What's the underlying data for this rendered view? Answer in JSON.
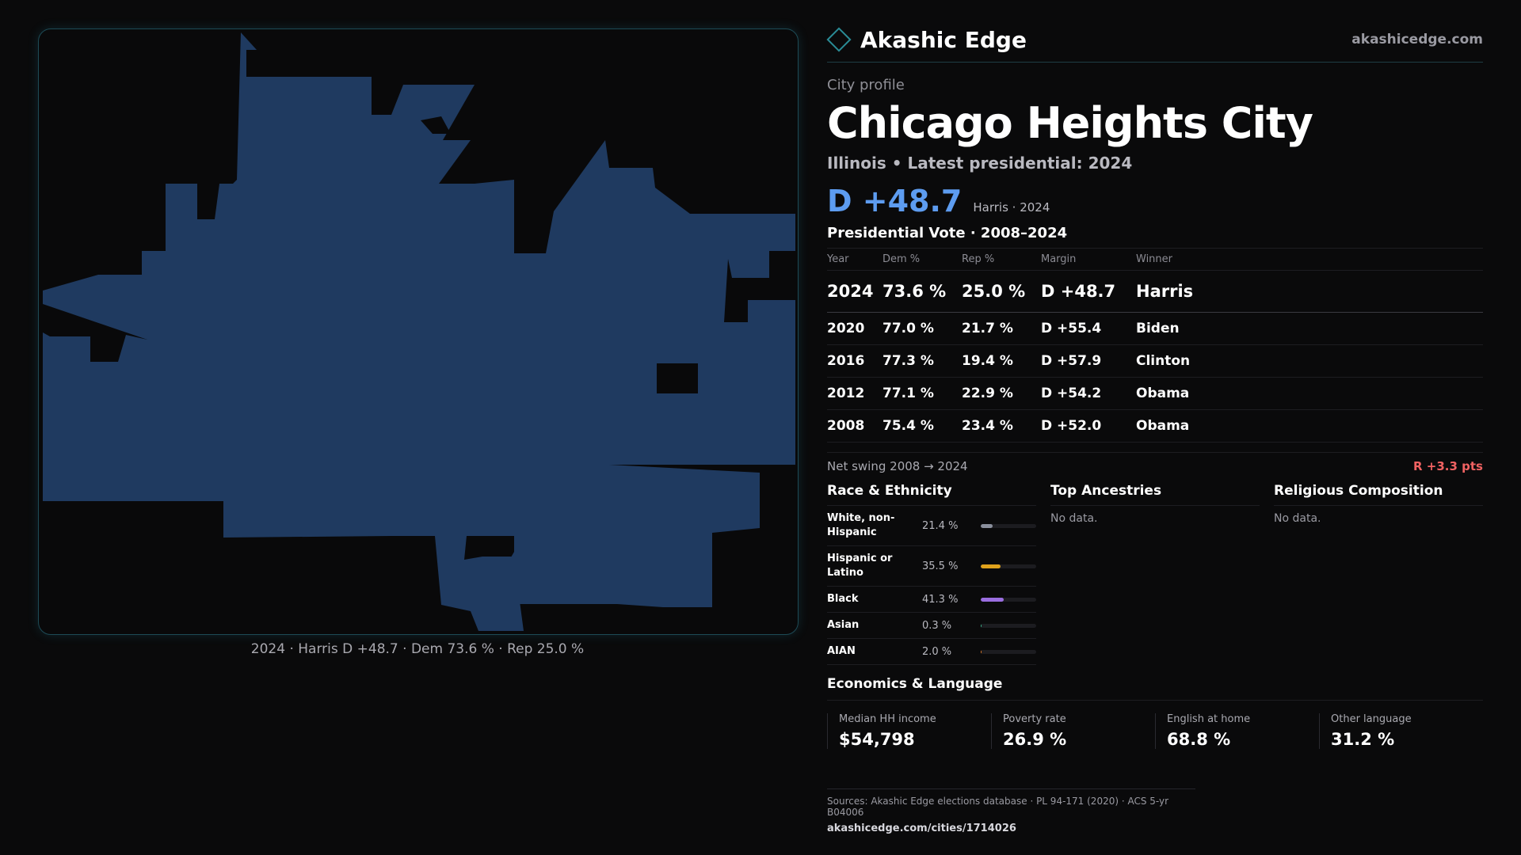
{
  "brand": {
    "name": "Akashic Edge",
    "site": "akashicedge.com"
  },
  "profile": {
    "eyebrow": "City profile",
    "city": "Chicago Heights City",
    "subline": "Illinois • Latest presidential: 2024",
    "headline_margin": "D +48.7",
    "headline_note": "Harris · 2024"
  },
  "votes": {
    "title": "Presidential Vote · 2008–2024",
    "headers": {
      "year": "Year",
      "dem": "Dem %",
      "rep": "Rep %",
      "margin": "Margin",
      "winner": "Winner"
    },
    "rows": [
      {
        "year": "2024",
        "dem": "73.6 %",
        "rep": "25.0 %",
        "margin": "D +48.7",
        "winner": "Harris"
      },
      {
        "year": "2020",
        "dem": "77.0 %",
        "rep": "21.7 %",
        "margin": "D +55.4",
        "winner": "Biden"
      },
      {
        "year": "2016",
        "dem": "77.3 %",
        "rep": "19.4 %",
        "margin": "D +57.9",
        "winner": "Clinton"
      },
      {
        "year": "2012",
        "dem": "77.1 %",
        "rep": "22.9 %",
        "margin": "D +54.2",
        "winner": "Obama"
      },
      {
        "year": "2008",
        "dem": "75.4 %",
        "rep": "23.4 %",
        "margin": "D +52.0",
        "winner": "Obama"
      }
    ],
    "swing_label": "Net swing 2008 → 2024",
    "swing_value": "R +3.3 pts"
  },
  "race": {
    "title": "Race & Ethnicity",
    "items": [
      {
        "label": "White, non-Hispanic",
        "pct": "21.4 %",
        "share": 0.214,
        "color": "#8a8f9c"
      },
      {
        "label": "Hispanic or Latino",
        "pct": "35.5 %",
        "share": 0.355,
        "color": "#e0a21c"
      },
      {
        "label": "Black",
        "pct": "41.3 %",
        "share": 0.413,
        "color": "#9a6ee0"
      },
      {
        "label": "Asian",
        "pct": "0.3 %",
        "share": 0.003,
        "color": "#3fb58f"
      },
      {
        "label": "AIAN",
        "pct": "2.0 %",
        "share": 0.02,
        "color": "#e07a2a"
      }
    ]
  },
  "ancestries": {
    "title": "Top Ancestries",
    "empty": "No data."
  },
  "religion": {
    "title": "Religious Composition",
    "empty": "No data."
  },
  "economics": {
    "title": "Economics & Language",
    "items": [
      {
        "label": "Median HH income",
        "value": "$54,798"
      },
      {
        "label": "Poverty rate",
        "value": "26.9 %"
      },
      {
        "label": "English at home",
        "value": "68.8 %"
      },
      {
        "label": "Other language",
        "value": "31.2 %"
      }
    ]
  },
  "map": {
    "caption": "2024 · Harris D +48.7 · Dem 73.6 % · Rep 25.0 %",
    "fill_color": "#1f3a60"
  },
  "sources": {
    "line": "Sources: Akashic Edge elections database · PL 94-171 (2020) · ACS 5-yr B04006",
    "url": "akashicedge.com/cities/1714026"
  }
}
